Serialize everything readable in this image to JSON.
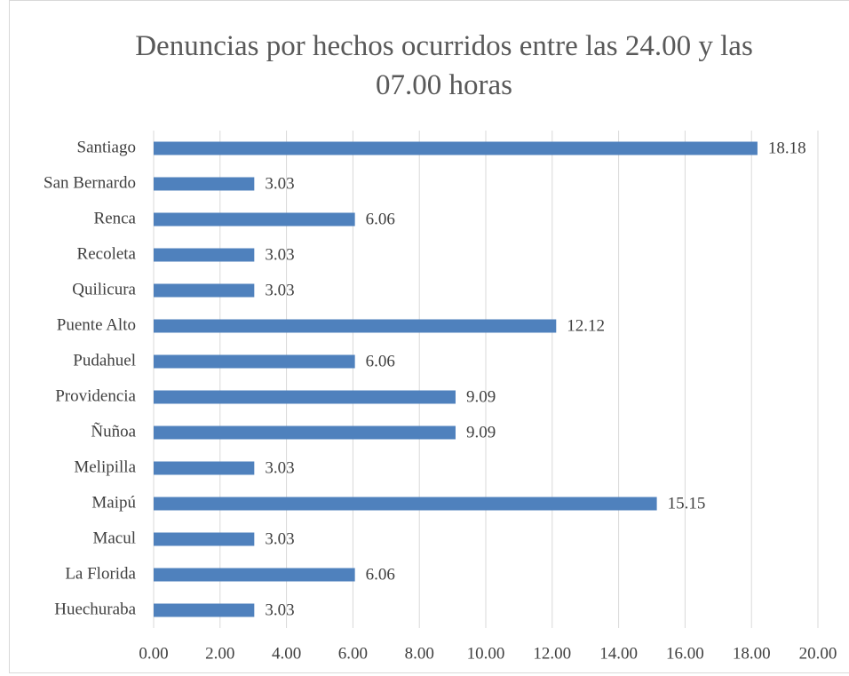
{
  "chart_data": {
    "type": "bar",
    "orientation": "horizontal",
    "title": "Denuncias por hechos ocurridos entre las 24.00 y las 07.00 horas",
    "categories": [
      "Santiago",
      "San Bernardo",
      "Renca",
      "Recoleta",
      "Quilicura",
      "Puente Alto",
      "Pudahuel",
      "Providencia",
      "Ñuñoa",
      "Melipilla",
      "Maipú",
      "Macul",
      "La Florida",
      "Huechuraba"
    ],
    "values": [
      18.18,
      3.03,
      6.06,
      3.03,
      3.03,
      12.12,
      6.06,
      9.09,
      9.09,
      3.03,
      15.15,
      3.03,
      6.06,
      3.03
    ],
    "color": "#4f81bd",
    "xlim": [
      0,
      20
    ],
    "xticks": [
      {
        "value": 0,
        "label": "0.00"
      },
      {
        "value": 2,
        "label": "2.00"
      },
      {
        "value": 4,
        "label": "4.00"
      },
      {
        "value": 6,
        "label": "6.00"
      },
      {
        "value": 8,
        "label": "8.00"
      },
      {
        "value": 10,
        "label": "10.00"
      },
      {
        "value": 12,
        "label": "12.00"
      },
      {
        "value": 14,
        "label": "14.00"
      },
      {
        "value": 16,
        "label": "16.00"
      },
      {
        "value": 18,
        "label": "18.00"
      },
      {
        "value": 20,
        "label": "20.00"
      }
    ],
    "grid": true
  }
}
